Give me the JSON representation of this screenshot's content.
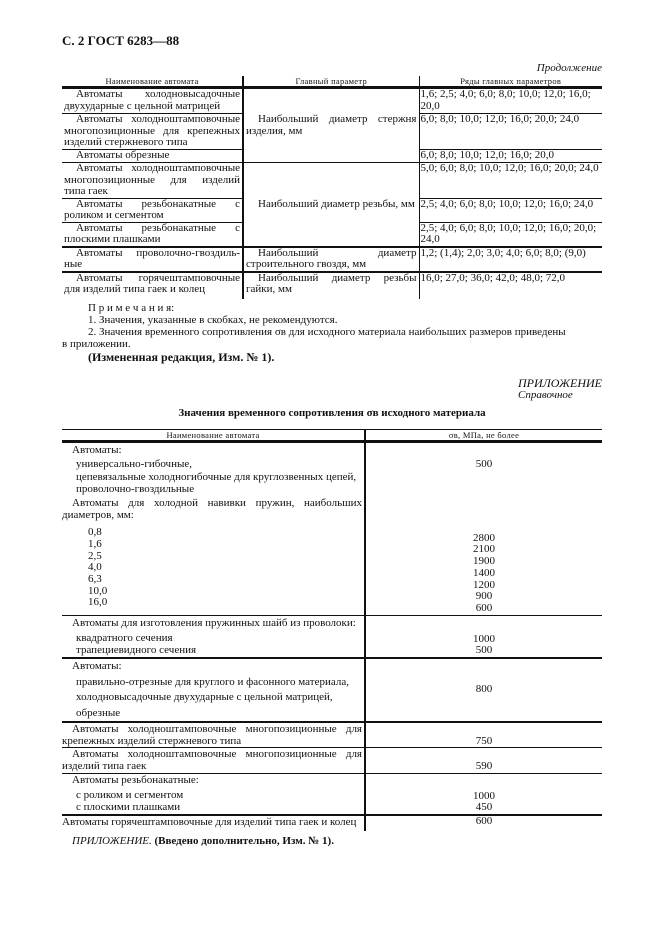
{
  "header": "С. 2 ГОСТ 6283—88",
  "continuation": "Продолжение",
  "table1": {
    "columns": [
      "Наименование автомата",
      "Главный параметр",
      "Ряды главных параметров"
    ],
    "rows": [
      {
        "name": [
          "Автоматы холодновысадочные",
          "двухударные с цельной матрицей"
        ],
        "series": "1,6; 2,5; 4,0; 6,0; 8,0; 10,0; 12,0; 16,0; 20,0"
      },
      {
        "name": [
          "Автоматы холодноштамповочные",
          "многопозиционные для крепежных",
          "изделий стержневого типа"
        ],
        "series": "6,0; 8,0; 10,0; 12,0; 16,0; 20,0; 24,0"
      },
      {
        "name": [
          "Автоматы обрезные"
        ],
        "series": "6,0; 8,0; 10,0; 12,0; 16,0; 20,0"
      },
      {
        "name": [
          "Автоматы холодноштамповочные",
          "многопозиционные для изделий",
          "типа гаек"
        ],
        "series": "5,0; 6,0; 8,0; 10,0; 12,0; 16,0; 20,0; 24,0"
      },
      {
        "name": [
          "Автоматы резьбонакатные с",
          "роликом и сегментом"
        ],
        "series": "2,5; 4,0; 6,0; 8,0; 10,0; 12,0; 16,0; 24,0"
      },
      {
        "name": [
          "Автоматы резьбонакатные с",
          "плоскими плашками"
        ],
        "series": "2,5; 4,0; 6,0; 8,0; 10,0; 12,0; 16,0; 20,0; 24,0"
      },
      {
        "name": [
          "Автоматы проволочно-гвоздиль-",
          "ные"
        ],
        "param": "Наибольший диаметр строительного гвоздя, мм",
        "series": "1,2; (1,4); 2,0; 3,0; 4,0; 6,0; 8,0; (9,0)"
      },
      {
        "name": [
          "Автоматы горячештамповочные",
          "для изделий типа гаек и колец"
        ],
        "param": "Наибольший диаметр резьбы гайки, мм",
        "series": "16,0; 27,0; 36,0; 42,0; 48,0; 72,0"
      }
    ],
    "param_group1": "Наибольший диаметр стержня изделия, мм",
    "param_group2": "Наибольший диаметр резьбы, мм"
  },
  "notes": {
    "heading": "П р и м е ч а н и я:",
    "items": [
      "1. Значения, указанные в скобках, не рекомендуются.",
      "2. Значения временного сопротивления σв для исходного материала наибольших размеров приведены",
      "в приложении."
    ],
    "amendment": "(Измененная редакция, Изм. № 1)."
  },
  "appendix": {
    "label": "ПРИЛОЖЕНИЕ",
    "type": "Справочное",
    "title": "Значения временного сопротивления σв исходного материала"
  },
  "table2": {
    "columns": [
      "Наименование автомата",
      "σв, МПа, не более"
    ],
    "g1": {
      "head": "Автоматы:",
      "items": [
        "универсально-гибочные,",
        "цепевязальные холодногибочные для круглозвенных цепей,",
        "проволочно-гвоздильные"
      ],
      "value": "500"
    },
    "g2": {
      "head": [
        "Автоматы для холодной навивки пружин, наибольших",
        "диаметров, мм:"
      ],
      "rows": [
        [
          "0,8",
          "2800"
        ],
        [
          "1,6",
          "2100"
        ],
        [
          "2,5",
          "1900"
        ],
        [
          "4,0",
          "1400"
        ],
        [
          "6,3",
          "1200"
        ],
        [
          "10,0",
          "900"
        ],
        [
          "16,0",
          "600"
        ]
      ]
    },
    "g3": {
      "head": "Автоматы для изготовления пружинных шайб из проволоки:",
      "rows": [
        [
          "квадратного сечения",
          "1000"
        ],
        [
          "трапециевидного сечения",
          "500"
        ]
      ]
    },
    "g4": {
      "head": "Автоматы:",
      "items": [
        "правильно-отрезные для круглого и фасонного материала,",
        "холодновысадочные двухударные с цельной матрицей,",
        "обрезные"
      ],
      "value": "800"
    },
    "g5": {
      "text": [
        "Автоматы холодноштамповочные многопозиционные для",
        "крепежных изделий стержневого типа"
      ],
      "value": "750"
    },
    "g6": {
      "text": [
        "Автоматы холодноштамповочные многопозиционные для",
        "изделий типа гаек"
      ],
      "value": "590"
    },
    "g7": {
      "head": "Автоматы резьбонакатные:",
      "rows": [
        [
          "с роликом и сегментом",
          "1000"
        ],
        [
          "с плоскими плашками",
          "450"
        ]
      ]
    },
    "g8": {
      "text": "Автоматы горячештамповочные для изделий типа гаек и колец",
      "value": "600"
    }
  },
  "footer": {
    "italic": "ПРИЛОЖЕНИЕ.",
    "bold": "(Введено дополнительно, Изм. № 1)."
  }
}
